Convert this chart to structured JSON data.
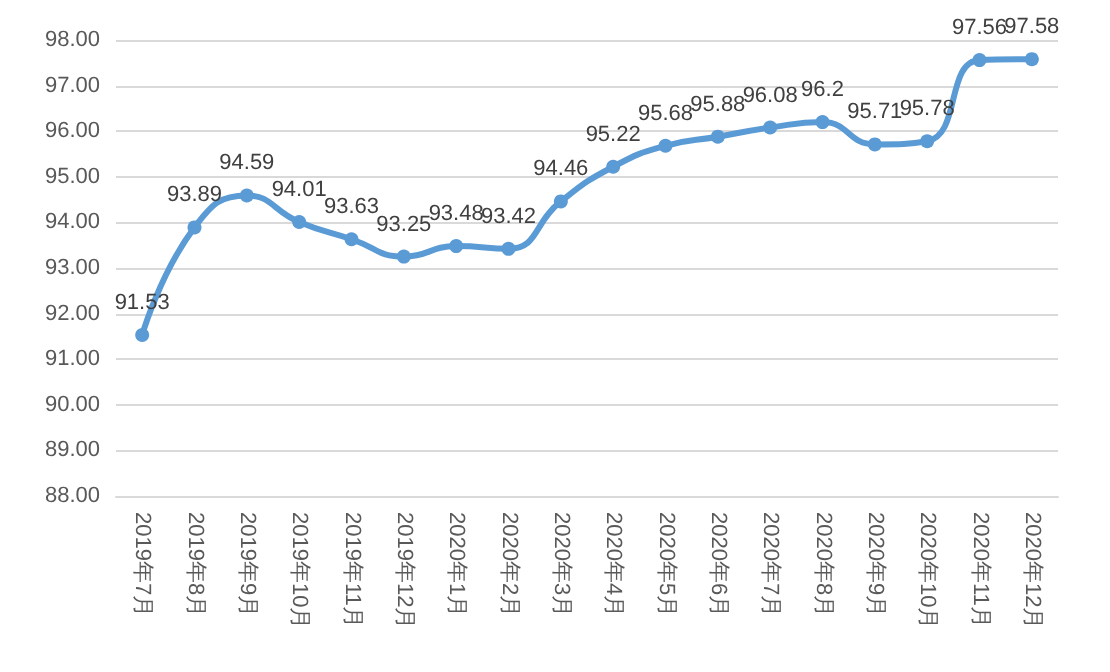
{
  "chart_data": {
    "type": "line",
    "categories": [
      "2019年7月",
      "2019年8月",
      "2019年9月",
      "2019年10月",
      "2019年11月",
      "2019年12月",
      "2020年1月",
      "2020年2月",
      "2020年3月",
      "2020年4月",
      "2020年5月",
      "2020年6月",
      "2020年7月",
      "2020年8月",
      "2020年9月",
      "2020年10月",
      "2020年11月",
      "2020年12月"
    ],
    "series": [
      {
        "color": "#5b9bd5",
        "values": [
          91.53,
          93.89,
          94.59,
          94.01,
          93.63,
          93.25,
          93.48,
          93.42,
          94.46,
          95.22,
          95.68,
          95.88,
          96.08,
          96.2,
          95.71,
          95.78,
          97.56,
          97.58
        ]
      }
    ],
    "ylim": [
      88,
      98
    ],
    "yticks": [
      {
        "value": 88,
        "label": "88.00"
      },
      {
        "value": 89,
        "label": "89.00"
      },
      {
        "value": 90,
        "label": "90.00"
      },
      {
        "value": 91,
        "label": "91.00"
      },
      {
        "value": 92,
        "label": "92.00"
      },
      {
        "value": 93,
        "label": "93.00"
      },
      {
        "value": 94,
        "label": "94.00"
      },
      {
        "value": 95,
        "label": "95.00"
      },
      {
        "value": 96,
        "label": "96.00"
      },
      {
        "value": 97,
        "label": "97.00"
      },
      {
        "value": 98,
        "label": "98.00"
      }
    ],
    "grid": "y",
    "marker": "circle",
    "line_style": "solid",
    "data_labels": true
  }
}
